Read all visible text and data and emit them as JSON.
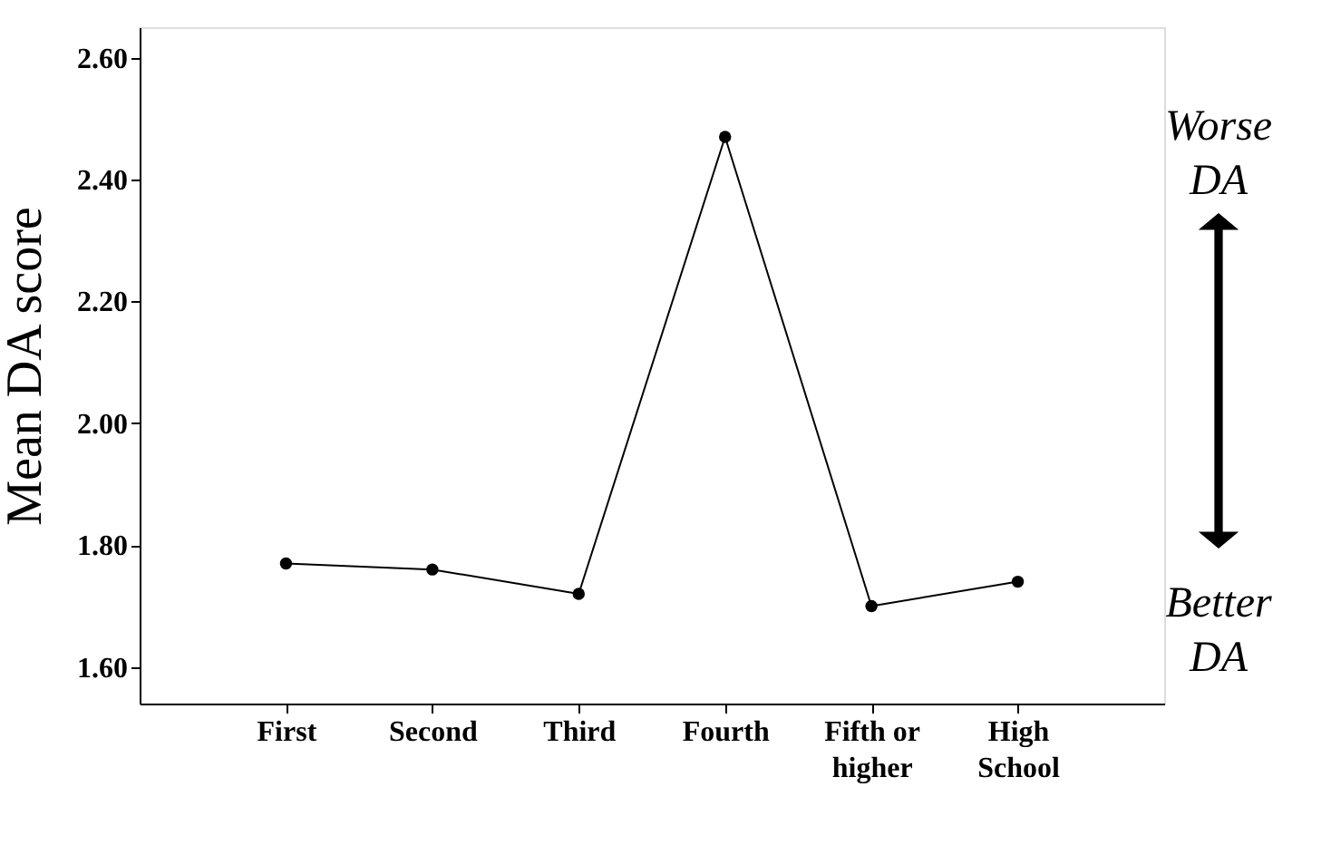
{
  "chart_data": {
    "type": "line",
    "ylabel": "Mean DA score",
    "categories": [
      "First",
      "Second",
      "Third",
      "Fourth",
      "Fifth or\nhigher",
      "High\nSchool"
    ],
    "values": [
      1.77,
      1.76,
      1.72,
      2.47,
      1.7,
      1.74
    ],
    "color": "#000000",
    "marker": "circle",
    "line_style": "solid",
    "grid": false,
    "ylim": [
      1.54,
      2.65
    ],
    "yticks": [
      {
        "value": 1.6,
        "label": "1.60"
      },
      {
        "value": 1.8,
        "label": "1.80"
      },
      {
        "value": 2.0,
        "label": "2.00"
      },
      {
        "value": 2.2,
        "label": "2.20"
      },
      {
        "value": 2.4,
        "label": "2.40"
      },
      {
        "value": 2.6,
        "label": "2.60"
      }
    ],
    "annotations": [
      "Worse\nDA",
      "Better\nDA"
    ]
  }
}
